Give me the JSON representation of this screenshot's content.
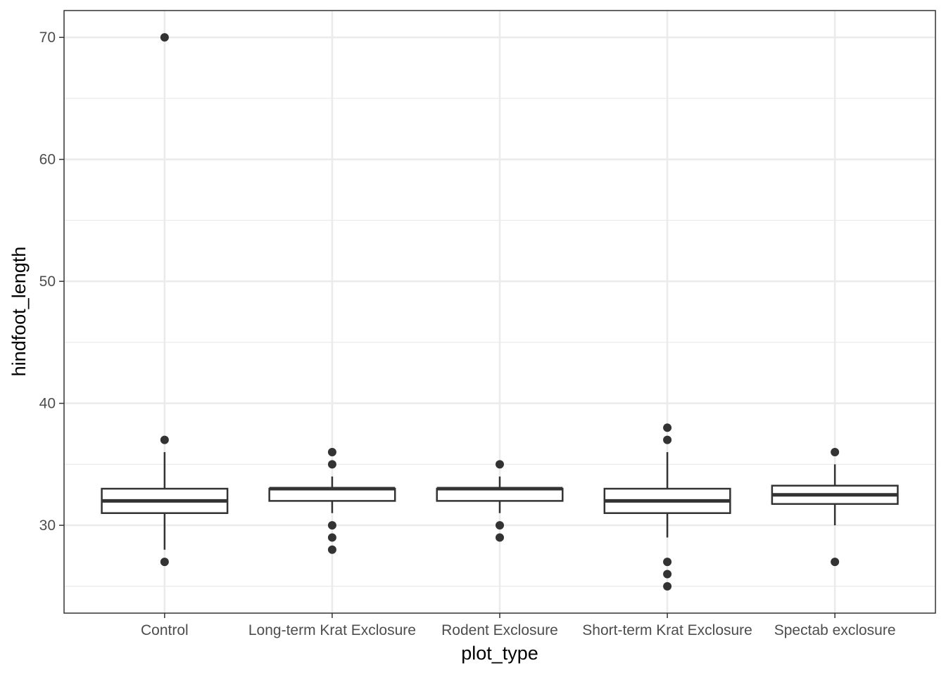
{
  "chart_data": {
    "type": "boxplot",
    "xlabel": "plot_type",
    "ylabel": "hindfoot_length",
    "ylim": [
      22.8,
      72.2
    ],
    "yticks": [
      30,
      40,
      50,
      60,
      70
    ],
    "grid": true,
    "categories": [
      "Control",
      "Long-term Krat Exclosure",
      "Rodent Exclosure",
      "Short-term Krat Exclosure",
      "Spectab exclosure"
    ],
    "boxes": [
      {
        "q1": 31,
        "median": 32,
        "q3": 33,
        "whisker_low": 28,
        "whisker_high": 36,
        "outliers": [
          70,
          37,
          27
        ]
      },
      {
        "q1": 32,
        "median": 33,
        "q3": 33,
        "whisker_low": 31,
        "whisker_high": 34,
        "outliers": [
          36,
          35,
          30,
          29,
          28
        ]
      },
      {
        "q1": 32,
        "median": 33,
        "q3": 33,
        "whisker_low": 31,
        "whisker_high": 34,
        "outliers": [
          35,
          30,
          29
        ]
      },
      {
        "q1": 31,
        "median": 32,
        "q3": 33,
        "whisker_low": 29,
        "whisker_high": 36,
        "outliers": [
          38,
          37,
          27,
          26,
          25
        ]
      },
      {
        "q1": 31.75,
        "median": 32.5,
        "q3": 33.25,
        "whisker_low": 30,
        "whisker_high": 35,
        "outliers": [
          36,
          27
        ]
      }
    ],
    "colors": {
      "box": "#333333",
      "grid": "#ebebeb",
      "panel_border": "#333333",
      "tick_text": "#4d4d4d"
    }
  }
}
